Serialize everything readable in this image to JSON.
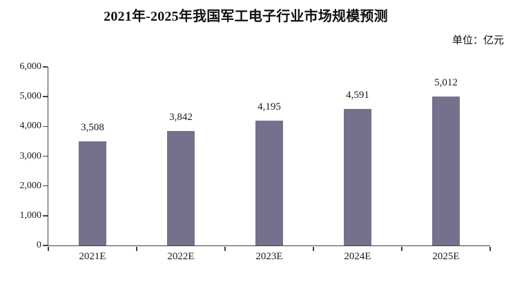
{
  "chart_data": {
    "type": "bar",
    "title": "2021年-2025年我国军工电子行业市场规模预测",
    "unit_label": "单位：亿元",
    "categories": [
      "2021E",
      "2022E",
      "2023E",
      "2024E",
      "2025E"
    ],
    "values": [
      3508,
      3842,
      4195,
      4591,
      5012
    ],
    "value_labels": [
      "3,508",
      "3,842",
      "4,195",
      "4,591",
      "5,012"
    ],
    "xlabel": "",
    "ylabel": "",
    "ylim": [
      0,
      6000
    ],
    "ytick_step": 1000,
    "ytick_labels": [
      "0",
      "1,000",
      "2,000",
      "3,000",
      "4,000",
      "5,000",
      "6,000"
    ],
    "grid": false,
    "legend": "none",
    "bar_color": "#74718D",
    "axis_color": "#3f3f3f",
    "text_color": "#1a1a1a"
  }
}
